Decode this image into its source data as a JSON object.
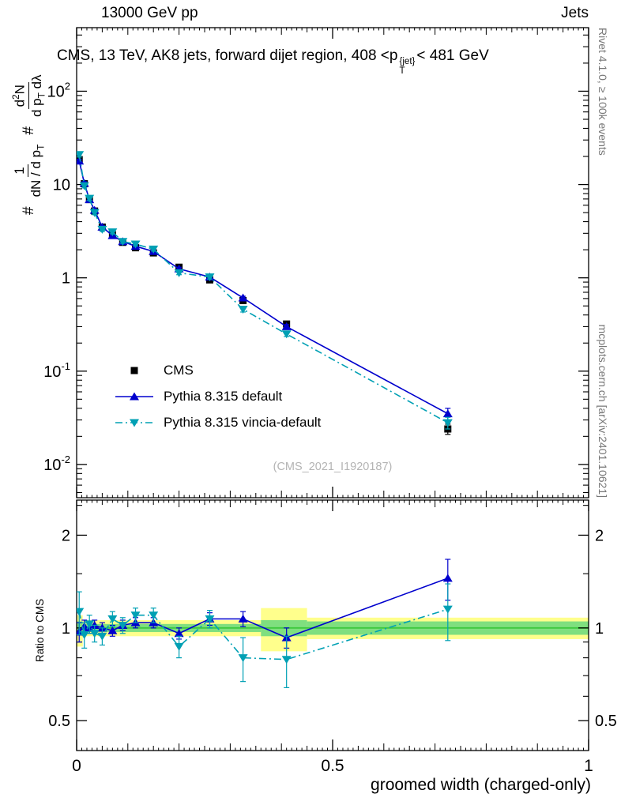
{
  "header": {
    "left": "13000 GeV pp",
    "right": "Jets"
  },
  "title": {
    "part1": "CMS, 13 TeV, AK8 jets, forward dijet region, 408 <p",
    "sup": "{jet}",
    "sub": "T",
    "part2": "< 481 GeV"
  },
  "ylabel_main": {
    "hash1": "#",
    "frac1_num": "1",
    "frac1_den": "dN / d p",
    "frac1_den_sub": "T",
    "hash2": "#",
    "frac2_num_a": "d",
    "frac2_num_sup": "2",
    "frac2_num_b": "N",
    "frac2_den_a": "d p",
    "frac2_den_sub": "T",
    "frac2_den_b": " dλ"
  },
  "ylabel_ratio": "Ratio to CMS",
  "xlabel": "groomed width (charged-only)",
  "watermark": "(CMS_2021_I1920187)",
  "side_notes": {
    "top": "Rivet 4.1.0, ≥ 100k events",
    "bottom": "mcplots.cern.ch [arXiv:2401.10621]"
  },
  "legend": [
    {
      "label": "CMS"
    },
    {
      "label": "Pythia 8.315 default"
    },
    {
      "label": "Pythia 8.315 vincia-default"
    }
  ],
  "colors": {
    "cms": "#000000",
    "pythia_default": "#0000cd",
    "pythia_vincia": "#00a0b4",
    "band_yellow": "#ffff8c",
    "band_green": "#7fdf7f",
    "ratio_line_green": "#3ec93e",
    "watermark": "#b4b4b4",
    "side_note": "#777777"
  },
  "chart_data": {
    "type": "line",
    "x": [
      0.005,
      0.015,
      0.025,
      0.035,
      0.05,
      0.07,
      0.09,
      0.115,
      0.15,
      0.2,
      0.26,
      0.325,
      0.41,
      0.725
    ],
    "series": [
      {
        "name": "CMS",
        "color_key": "cms",
        "marker": "square",
        "line": "none",
        "y": [
          18.5,
          10.2,
          6.9,
          5.2,
          3.5,
          2.9,
          2.4,
          2.1,
          1.85,
          1.3,
          0.95,
          0.57,
          0.32,
          0.024
        ],
        "yerr": [
          1.0,
          0.5,
          0.35,
          0.25,
          0.17,
          0.14,
          0.11,
          0.1,
          0.08,
          0.06,
          0.05,
          0.03,
          0.018,
          0.003
        ]
      },
      {
        "name": "Pythia 8.315 default",
        "color_key": "pythia_default",
        "marker": "triangle-up",
        "line": "solid",
        "y": [
          17.9,
          10.3,
          6.9,
          5.3,
          3.5,
          2.84,
          2.45,
          2.18,
          1.92,
          1.25,
          1.02,
          0.61,
          0.3,
          0.035
        ],
        "yerr": [
          0.8,
          0.45,
          0.3,
          0.22,
          0.15,
          0.12,
          0.1,
          0.09,
          0.08,
          0.05,
          0.04,
          0.025,
          0.015,
          0.005
        ]
      },
      {
        "name": "Pythia 8.315 vincia-default",
        "color_key": "pythia_vincia",
        "marker": "triangle-down",
        "line": "dashdot",
        "y": [
          20.9,
          9.7,
          7.1,
          5.0,
          3.3,
          3.1,
          2.45,
          2.3,
          2.03,
          1.13,
          1.02,
          0.46,
          0.25,
          0.028
        ],
        "yerr": [
          1.2,
          0.5,
          0.35,
          0.25,
          0.17,
          0.14,
          0.11,
          0.1,
          0.09,
          0.05,
          0.05,
          0.03,
          0.015,
          0.004
        ]
      }
    ],
    "ratio_series": [
      {
        "name": "Pythia 8.315 default",
        "color_key": "pythia_default",
        "marker": "triangle-up",
        "line": "solid",
        "y": [
          0.97,
          1.01,
          1.0,
          1.02,
          1.0,
          0.98,
          1.02,
          1.04,
          1.04,
          0.96,
          1.07,
          1.07,
          0.93,
          1.45
        ],
        "yerr": [
          0.07,
          0.05,
          0.04,
          0.04,
          0.04,
          0.04,
          0.04,
          0.04,
          0.04,
          0.04,
          0.05,
          0.06,
          0.07,
          0.22
        ]
      },
      {
        "name": "Pythia 8.315 vincia-default",
        "color_key": "pythia_vincia",
        "marker": "triangle-down",
        "line": "dashdot",
        "y": [
          1.13,
          0.95,
          1.03,
          0.96,
          0.94,
          1.07,
          1.02,
          1.1,
          1.1,
          0.87,
          1.07,
          0.8,
          0.79,
          1.15
        ],
        "yerr": [
          0.18,
          0.09,
          0.07,
          0.06,
          0.06,
          0.06,
          0.06,
          0.06,
          0.06,
          0.07,
          0.07,
          0.13,
          0.15,
          0.24
        ]
      }
    ],
    "bands": {
      "yellow": [
        {
          "x0": 0.0,
          "x1": 0.012,
          "lo": 0.87,
          "hi": 1.1
        },
        {
          "x0": 0.012,
          "x1": 0.36,
          "lo": 0.94,
          "hi": 1.06
        },
        {
          "x0": 0.36,
          "x1": 0.45,
          "lo": 0.84,
          "hi": 1.16
        },
        {
          "x0": 0.45,
          "x1": 1.0,
          "lo": 0.92,
          "hi": 1.08
        }
      ],
      "green": [
        {
          "x0": 0.0,
          "x1": 0.012,
          "lo": 0.95,
          "hi": 1.05
        },
        {
          "x0": 0.012,
          "x1": 0.36,
          "lo": 0.97,
          "hi": 1.03
        },
        {
          "x0": 0.36,
          "x1": 0.45,
          "lo": 0.94,
          "hi": 1.06
        },
        {
          "x0": 0.45,
          "x1": 1.0,
          "lo": 0.95,
          "hi": 1.05
        }
      ],
      "center": 1
    },
    "axes": {
      "x": {
        "min": 0,
        "max": 1,
        "major": [
          0,
          0.5,
          1
        ]
      },
      "y_main": {
        "scale": "log",
        "min": 0.0044,
        "max": 480,
        "label_decades": [
          2,
          1,
          0,
          -1,
          -2
        ]
      },
      "y_ratio": {
        "scale": "log",
        "min": 0.4,
        "max": 2.6,
        "major": [
          0.5,
          1,
          2
        ],
        "minor": [
          0.6,
          0.7,
          0.8,
          0.9,
          1.5,
          2.5
        ]
      }
    }
  }
}
